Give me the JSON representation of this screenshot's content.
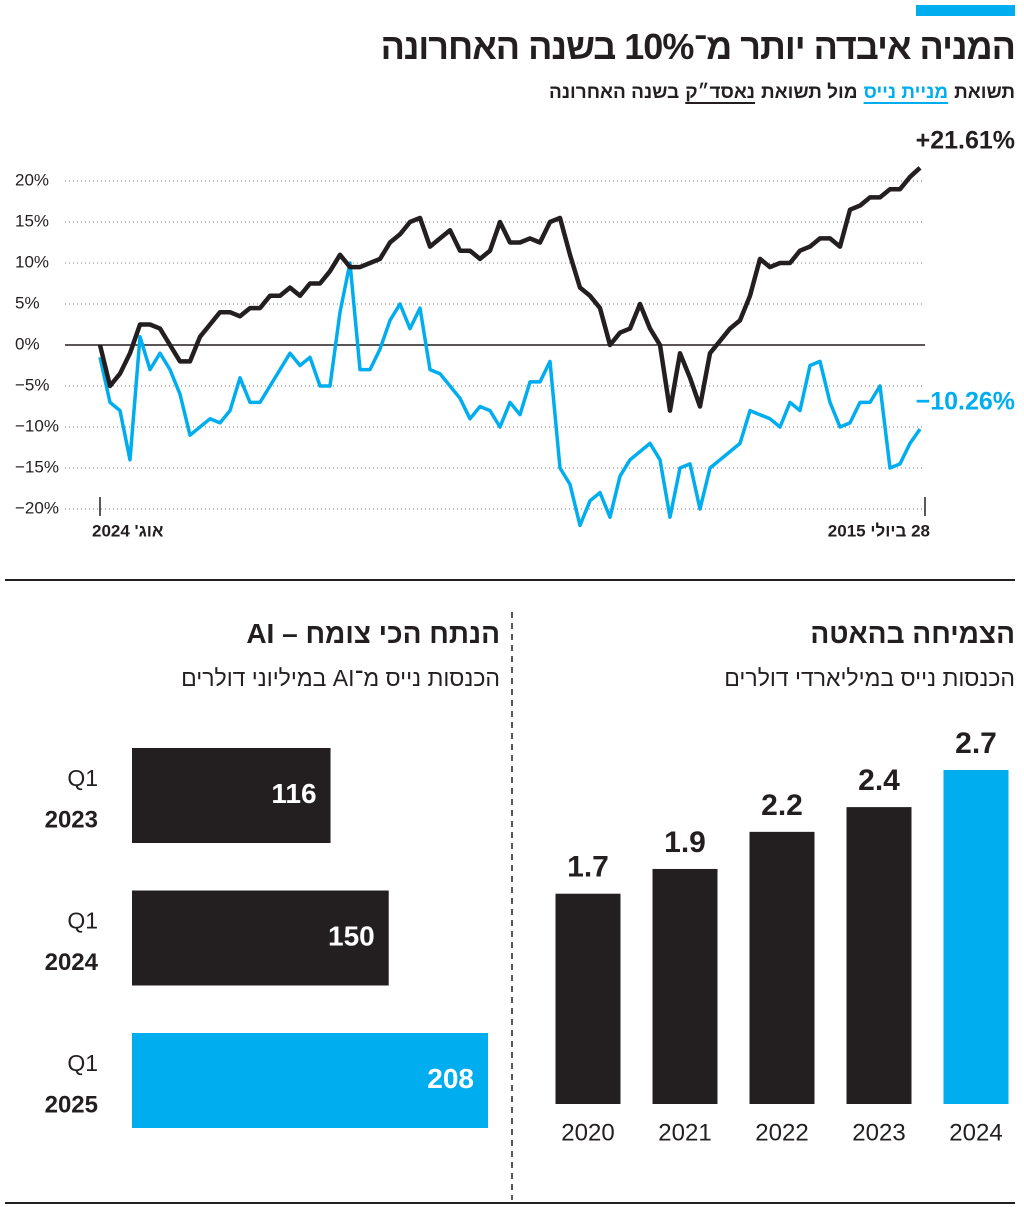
{
  "chart_data": [
    {
      "type": "line",
      "title": "המניה איבדה יותר מ־10% בשנה האחרונה",
      "subtitle_parts": [
        "תשואת",
        "מול תשואת",
        "בשנה האחרונה"
      ],
      "categories": [
        "אוג' 2024",
        null,
        null,
        null,
        null,
        null,
        null,
        null,
        null,
        null,
        null,
        null,
        null,
        null,
        null,
        null,
        null,
        null,
        null,
        null,
        null,
        null,
        null,
        null,
        null,
        null,
        null,
        null,
        null,
        null,
        null,
        null,
        null,
        null,
        null,
        null,
        null,
        null,
        null,
        null,
        null,
        null,
        null,
        null,
        null,
        null,
        null,
        null,
        null,
        null,
        null,
        null,
        null,
        null,
        null,
        null,
        null,
        null,
        null,
        null,
        null,
        null,
        null,
        null,
        null,
        null,
        null,
        null,
        null,
        null,
        null,
        null,
        null,
        null,
        null,
        null,
        null,
        null,
        null,
        null,
        null,
        null,
        "28 ביולי 2015"
      ],
      "series": [
        {
          "name": "מניית נייס",
          "color": "#00aeef",
          "values": [
            -1.5,
            -7,
            -8,
            -14,
            1,
            -3,
            -1,
            -3,
            -6,
            -11,
            -10,
            -9,
            -9.5,
            -8,
            -4,
            -7,
            -7,
            -5,
            -3,
            -1,
            -2.5,
            -1.5,
            -5,
            -5,
            4,
            10,
            -3,
            -3,
            -0.5,
            3,
            5,
            2,
            4.5,
            -3,
            -3.5,
            -5,
            -6.5,
            -9,
            -7.5,
            -8,
            -10,
            -7,
            -8.5,
            -4.5,
            -4.5,
            -2,
            -15,
            -17,
            -22,
            -19,
            -18,
            -21,
            -16,
            -14,
            -13,
            -12,
            -14,
            -21,
            -15,
            -14.5,
            -20,
            -15,
            -14,
            -13,
            -12,
            -8,
            -8.5,
            -9,
            -10,
            -7,
            -8,
            -2.5,
            -2,
            -7,
            -10,
            -9.5,
            -7,
            -7,
            -5,
            -15,
            -14.5,
            -12,
            -10.26
          ],
          "value_labels": [
            null,
            null,
            null,
            null,
            null,
            null,
            null,
            null,
            null,
            null,
            null,
            null,
            null,
            null,
            null,
            null,
            null,
            null,
            null,
            null,
            null,
            null,
            null,
            null,
            null,
            null,
            null,
            null,
            null,
            null,
            null,
            null,
            null,
            null,
            null,
            null,
            null,
            null,
            null,
            null,
            null,
            null,
            null,
            null,
            null,
            null,
            null,
            null,
            null,
            null,
            null,
            null,
            null,
            null,
            null,
            null,
            null,
            null,
            null,
            null,
            null,
            null,
            null,
            null,
            null,
            null,
            null,
            null,
            null,
            null,
            null,
            null,
            null,
            null,
            null,
            null,
            null,
            null,
            null,
            null,
            null,
            null,
            "−10.26%"
          ]
        },
        {
          "name": "נאסד״ק",
          "color": "#231f20",
          "values": [
            0,
            -5,
            -3.5,
            -1,
            2.5,
            2.5,
            2,
            0,
            -2,
            -2,
            1,
            2.5,
            4,
            4,
            3.5,
            4.5,
            4.5,
            6,
            6,
            7,
            6,
            7.5,
            7.5,
            9,
            11,
            9.5,
            9.5,
            10,
            10.5,
            12.5,
            13.5,
            15,
            15.5,
            12,
            13,
            14,
            11.5,
            11.5,
            10.5,
            11.5,
            15,
            12.5,
            12.5,
            13,
            12.5,
            15,
            15.5,
            11,
            7,
            6,
            4.5,
            0,
            1.5,
            2,
            5,
            2,
            0,
            -8,
            -1,
            -4,
            -7.5,
            -1,
            0.5,
            2,
            3,
            6,
            10.5,
            9.5,
            10,
            10,
            11.5,
            12,
            13,
            13,
            12,
            16.5,
            17,
            18,
            18,
            19,
            19,
            20.5,
            21.61
          ],
          "value_labels": [
            null,
            null,
            null,
            null,
            null,
            null,
            null,
            null,
            null,
            null,
            null,
            null,
            null,
            null,
            null,
            null,
            null,
            null,
            null,
            null,
            null,
            null,
            null,
            null,
            null,
            null,
            null,
            null,
            null,
            null,
            null,
            null,
            null,
            null,
            null,
            null,
            null,
            null,
            null,
            null,
            null,
            null,
            null,
            null,
            null,
            null,
            null,
            null,
            null,
            null,
            null,
            null,
            null,
            null,
            null,
            null,
            null,
            null,
            null,
            null,
            null,
            null,
            null,
            null,
            null,
            null,
            null,
            null,
            null,
            null,
            null,
            null,
            null,
            null,
            null,
            null,
            null,
            null,
            null,
            null,
            null,
            null,
            "+21.61%"
          ]
        }
      ],
      "ylim": [
        -23,
        23
      ],
      "yticks": [
        {
          "value": 20,
          "label": "20%"
        },
        {
          "value": 15,
          "label": "15%"
        },
        {
          "value": 10,
          "label": "10%"
        },
        {
          "value": 5,
          "label": "5%"
        },
        {
          "value": 0,
          "label": "0%"
        },
        {
          "value": -5,
          "label": "−5%"
        },
        {
          "value": -10,
          "label": "−10%"
        },
        {
          "value": -15,
          "label": "−15%"
        },
        {
          "value": -20,
          "label": "−20%"
        }
      ],
      "grid": true
    },
    {
      "type": "bar",
      "title": "הצמיחה בהאטה",
      "subtitle": "הכנסות נייס במיליארדי דולרים",
      "categories": [
        "2020",
        "2021",
        "2022",
        "2023",
        "2024"
      ],
      "values": [
        1.7,
        1.9,
        2.2,
        2.4,
        2.7
      ],
      "colors": [
        "#231f20",
        "#231f20",
        "#231f20",
        "#231f20",
        "#00aeef"
      ],
      "ylim": [
        0,
        2.7
      ]
    },
    {
      "type": "barh",
      "title": "הנתח הכי צומח – AI",
      "subtitle": "הכנסות נייס מ־AI במיליוני דולרים",
      "categories": [
        [
          "Q1",
          "2023"
        ],
        [
          "Q1",
          "2024"
        ],
        [
          "Q1",
          "2025"
        ]
      ],
      "values": [
        116,
        150,
        208
      ],
      "colors": [
        "#231f20",
        "#231f20",
        "#00aeef"
      ],
      "xlim": [
        0,
        208
      ]
    }
  ]
}
